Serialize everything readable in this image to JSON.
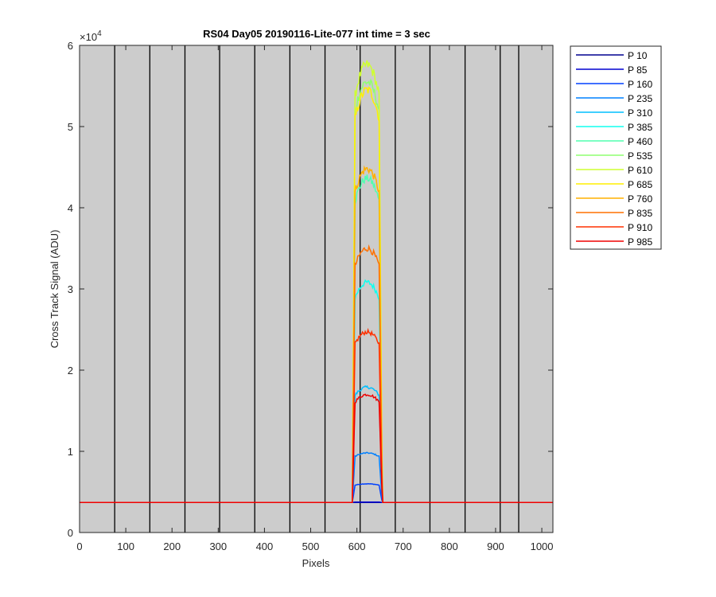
{
  "chart_data": {
    "type": "line",
    "title": "RS04 Day05 20190116-Lite-077 int time = 3 sec",
    "xlabel": "Pixels",
    "ylabel": "Cross Track Signal (ADU)",
    "y_exponent_label": "×10",
    "y_exponent_power": "4",
    "xlim": [
      0,
      1024
    ],
    "ylim": [
      0,
      60000
    ],
    "x_ticks": [
      0,
      100,
      200,
      300,
      400,
      500,
      600,
      700,
      800,
      900,
      1000
    ],
    "x_tick_labels": [
      "0",
      "100",
      "200",
      "300",
      "400",
      "500",
      "600",
      "700",
      "800",
      "900",
      "1000"
    ],
    "y_ticks": [
      0,
      10000,
      20000,
      30000,
      40000,
      50000,
      60000
    ],
    "y_tick_labels": [
      "0",
      "1",
      "2",
      "3",
      "4",
      "5",
      "6"
    ],
    "axes_background": "#cccccc",
    "segment_dividers_x": [
      76,
      152,
      228,
      303,
      379,
      455,
      531,
      607,
      683,
      758,
      834,
      910,
      950
    ],
    "baseline": 3700,
    "plateau_x_range": [
      596,
      648
    ],
    "edge_x_range": [
      590,
      655
    ],
    "legend_position": "outside-right",
    "series": [
      {
        "name": "P 10",
        "color": "#00008f",
        "peak": 3700
      },
      {
        "name": "P 85",
        "color": "#0000d0",
        "peak": 3750
      },
      {
        "name": "P 160",
        "color": "#0040ff",
        "peak": 6000
      },
      {
        "name": "P 235",
        "color": "#0080ff",
        "peak": 9800
      },
      {
        "name": "P 310",
        "color": "#00bfff",
        "peak": 17900
      },
      {
        "name": "P 385",
        "color": "#10ffef",
        "peak": 30800
      },
      {
        "name": "P 460",
        "color": "#50ffaf",
        "peak": 43600
      },
      {
        "name": "P 535",
        "color": "#8fff70",
        "peak": 55500
      },
      {
        "name": "P 610",
        "color": "#cfff30",
        "peak": 57600
      },
      {
        "name": "P 685",
        "color": "#ffef00",
        "peak": 54500
      },
      {
        "name": "P 760",
        "color": "#ffb000",
        "peak": 44800
      },
      {
        "name": "P 835",
        "color": "#ff7000",
        "peak": 35000
      },
      {
        "name": "P 910",
        "color": "#ff3000",
        "peak": 24700
      },
      {
        "name": "P 985",
        "color": "#ef0000",
        "peak": 17000
      }
    ]
  }
}
